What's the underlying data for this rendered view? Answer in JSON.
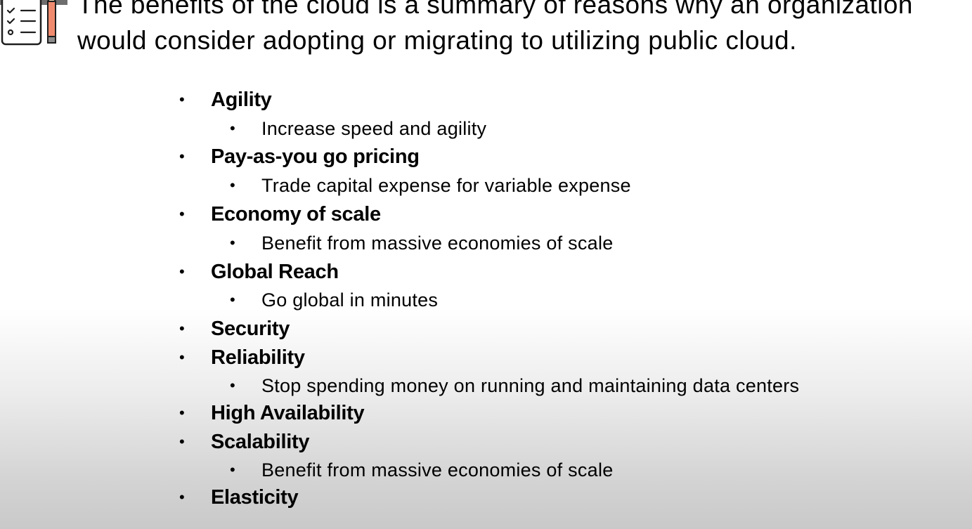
{
  "intro": {
    "line1": "The benefits of the cloud is a summary of reasons why an organization",
    "line2": "would consider adopting or migrating to utilizing public cloud."
  },
  "icons": {
    "checklist": "checklist-with-pencil-icon",
    "bullet_glyph": "•"
  },
  "colors": {
    "text": "#000000",
    "pencil": "#f08a6e",
    "pencil_tip": "#3a3a3a",
    "background_top": "#ffffff",
    "background_bottom": "#c9c9c9"
  },
  "benefits": [
    {
      "label": "Agility",
      "level": 1
    },
    {
      "label": "Increase speed and agility",
      "level": 2
    },
    {
      "label": "Pay-as-you go pricing",
      "level": 1
    },
    {
      "label": "Trade capital expense for variable expense",
      "level": 2
    },
    {
      "label": "Economy of scale",
      "level": 1
    },
    {
      "label": "Benefit from massive economies of scale",
      "level": 2
    },
    {
      "label": "Global Reach",
      "level": 1
    },
    {
      "label": "Go global in minutes",
      "level": 2
    },
    {
      "label": "Security",
      "level": 1
    },
    {
      "label": "Reliability",
      "level": 1
    },
    {
      "label": "Stop spending money on running  and maintaining data centers",
      "level": 2
    },
    {
      "label": "High Availability",
      "level": 1
    },
    {
      "label": "Scalability",
      "level": 1
    },
    {
      "label": "Benefit from massive economies of scale",
      "level": 2
    },
    {
      "label": "Elasticity",
      "level": 1
    }
  ]
}
